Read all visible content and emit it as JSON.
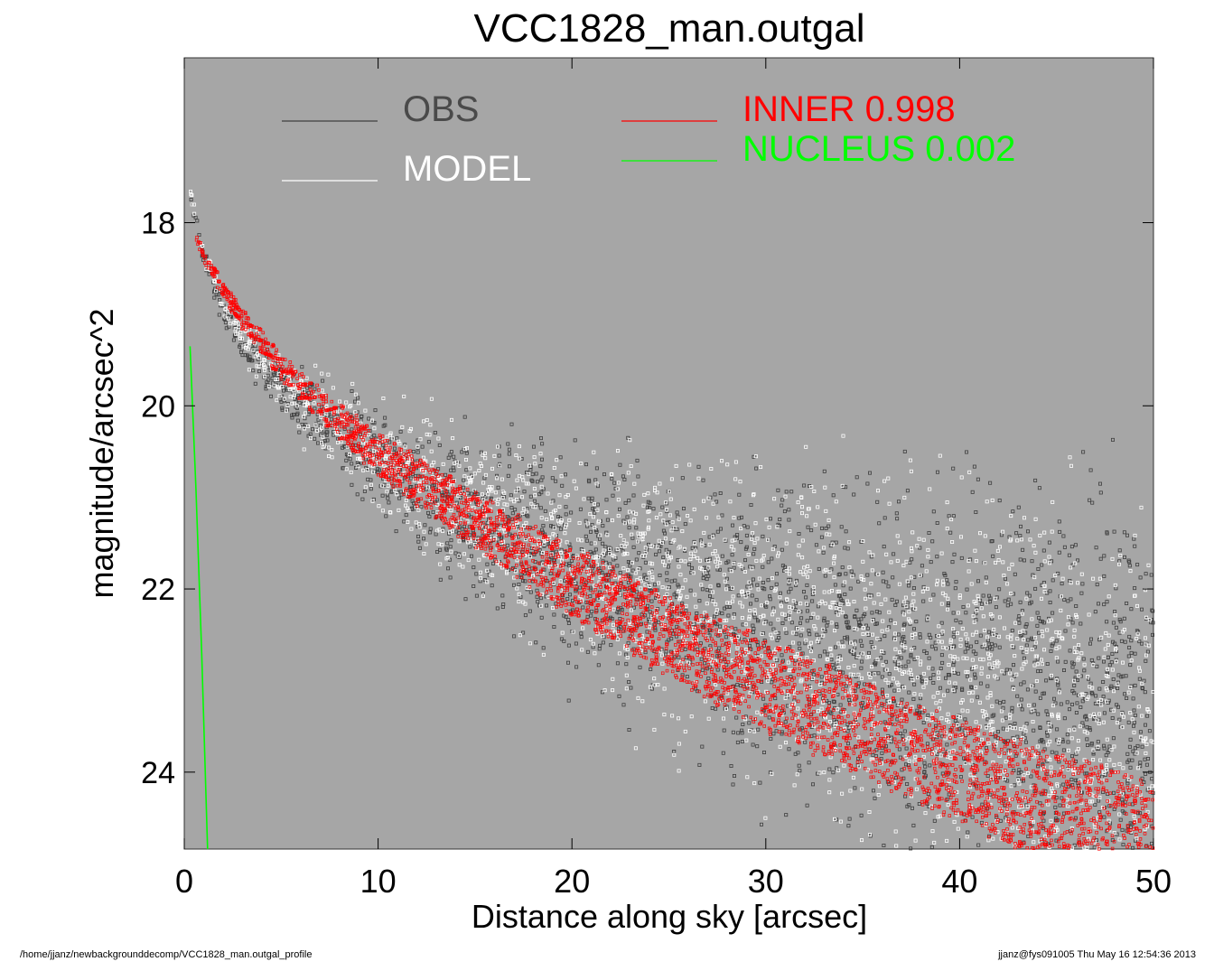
{
  "chart_data": {
    "type": "scatter",
    "title": "VCC1828_man.outgal",
    "xlabel": "Distance along sky [arcsec]",
    "ylabel": "magnitude/arcsec^2",
    "xlim": [
      0,
      50
    ],
    "ylim": [
      24.84,
      16.2
    ],
    "y_inverted": true,
    "xticks": [
      0,
      10,
      20,
      30,
      40,
      50
    ],
    "yticks": [
      18,
      20,
      22,
      24
    ],
    "background": "#a6a6a6",
    "grid": false,
    "legend_placement": "top",
    "series": [
      {
        "name": "OBS",
        "kind": "scatter",
        "color": "#3f3f3f",
        "approx_points": [
          [
            0.3,
            17.7
          ],
          [
            1,
            18.4
          ],
          [
            2,
            18.95
          ],
          [
            3,
            19.3
          ],
          [
            5,
            19.8
          ],
          [
            8,
            20.3
          ],
          [
            10,
            20.6
          ],
          [
            15,
            21.2
          ],
          [
            20,
            21.7
          ],
          [
            25,
            22.1
          ],
          [
            30,
            22.4
          ],
          [
            35,
            22.8
          ],
          [
            40,
            23.1
          ],
          [
            45,
            23.4
          ],
          [
            50,
            23.6
          ]
        ]
      },
      {
        "name": "MODEL",
        "kind": "scatter",
        "color": "#ffffff",
        "approx_points": [
          [
            0.3,
            17.65
          ],
          [
            1,
            18.35
          ],
          [
            2,
            18.9
          ],
          [
            3,
            19.25
          ],
          [
            5,
            19.75
          ],
          [
            8,
            20.25
          ],
          [
            10,
            20.55
          ],
          [
            15,
            21.15
          ],
          [
            20,
            21.65
          ],
          [
            25,
            22.05
          ],
          [
            30,
            22.4
          ],
          [
            35,
            22.75
          ],
          [
            40,
            23.05
          ],
          [
            45,
            23.35
          ],
          [
            50,
            23.6
          ]
        ]
      },
      {
        "name": "INNER",
        "value_label": "0.998",
        "kind": "scatter",
        "color": "#ff0000",
        "band_upper": [
          [
            0.6,
            18.1
          ],
          [
            1,
            18.3
          ],
          [
            2,
            18.65
          ],
          [
            3,
            18.95
          ],
          [
            5,
            19.45
          ],
          [
            8,
            20.0
          ],
          [
            10,
            20.3
          ],
          [
            15,
            20.95
          ],
          [
            20,
            21.55
          ],
          [
            25,
            22.1
          ],
          [
            30,
            22.55
          ],
          [
            35,
            23.0
          ],
          [
            40,
            23.45
          ],
          [
            45,
            23.8
          ],
          [
            50,
            24.1
          ]
        ],
        "band_lower": [
          [
            0.6,
            18.2
          ],
          [
            1,
            18.4
          ],
          [
            2,
            18.8
          ],
          [
            3,
            19.15
          ],
          [
            5,
            19.7
          ],
          [
            8,
            20.35
          ],
          [
            10,
            20.75
          ],
          [
            15,
            21.55
          ],
          [
            20,
            22.3
          ],
          [
            25,
            22.95
          ],
          [
            30,
            23.55
          ],
          [
            35,
            24.05
          ],
          [
            40,
            24.55
          ],
          [
            43,
            24.84
          ]
        ]
      },
      {
        "name": "NUCLEUS",
        "value_label": "0.002",
        "kind": "line",
        "color": "#00ff00",
        "points": [
          [
            0.3,
            19.35
          ],
          [
            0.6,
            20.9
          ],
          [
            0.9,
            22.7
          ],
          [
            1.2,
            24.84
          ]
        ]
      }
    ]
  },
  "footer": {
    "path": "/home/jjanz/newbackgrounddecomp/VCC1828_man.outgal_profile",
    "stamp": "jjanz@fys091005  Thu May 16 12:54:36 2013"
  }
}
